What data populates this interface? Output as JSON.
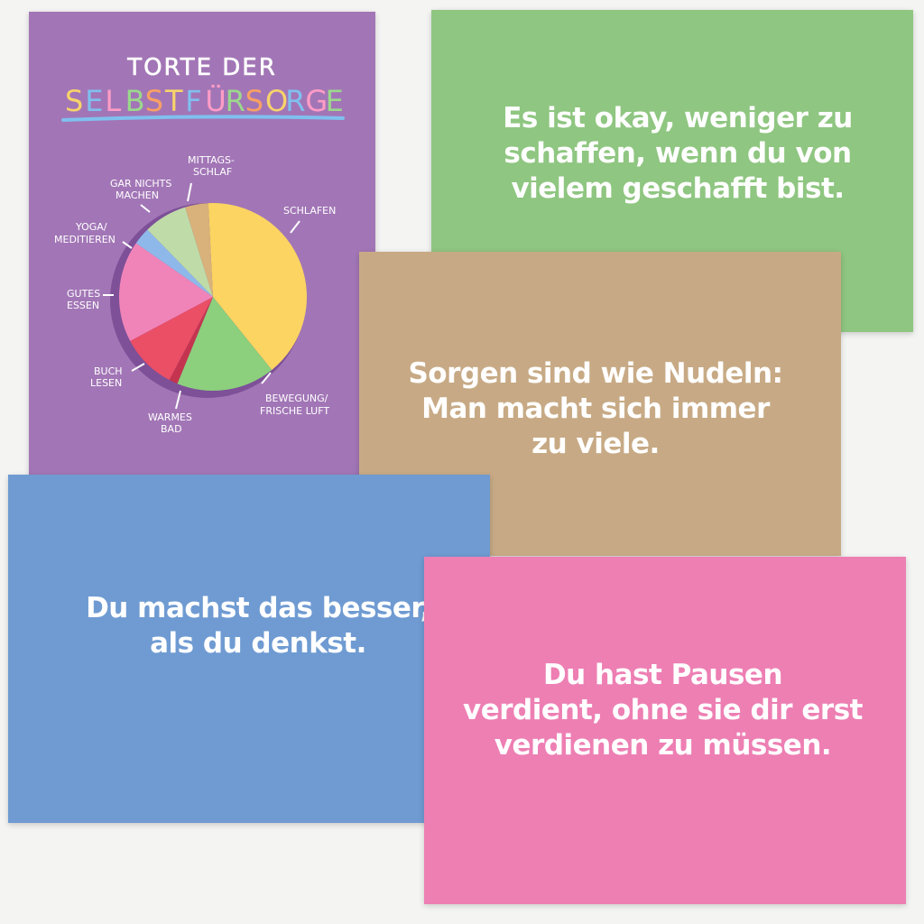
{
  "colors": {
    "background": "#f4f4f3",
    "purple_card": "#a276b6",
    "green_card": "#8fc681",
    "brown_card": "#c7aa85",
    "blue_card": "#6f9bd2",
    "pink_card": "#ed7fb3",
    "quote_text": "#ffffff"
  },
  "poster": {
    "title_line1": "TORTE DER",
    "title_line2_letters": [
      "S",
      "E",
      "L",
      "B",
      "S",
      "T",
      "F",
      "Ü",
      "R",
      "S",
      "O",
      "R",
      "G",
      "E"
    ],
    "title_line2_colors": [
      "#f7d36a",
      "#7fc0ef",
      "#ff9cc6",
      "#9bd88c",
      "#f9a064",
      "#f7d36a",
      "#7fc0ef",
      "#ff9cc6",
      "#9bd88c",
      "#f9a064",
      "#f7d36a",
      "#7fc0ef",
      "#ff9cc6",
      "#9bd88c"
    ],
    "underline_color": "#7fc0ef",
    "pie_labels": {
      "mittagsschlaf_1": "MITTAGS-",
      "mittagsschlaf_2": "SCHLAF",
      "garnichts_1": "GAR NICHTS",
      "garnichts_2": "MACHEN",
      "yoga_1": "YOGA/",
      "yoga_2": "MEDITIEREN",
      "schlafen": "SCHLAFEN",
      "gutes_1": "GUTES",
      "gutes_2": "ESSEN",
      "buch_1": "BUCH",
      "buch_2": "LESEN",
      "warmes_1": "WARMES",
      "warmes_2": "BAD",
      "bewegung_1": "BEWEGUNG/",
      "bewegung_2": "FRISCHE LUFT"
    },
    "pie_slices": [
      {
        "label": "SCHLAFEN",
        "share": 0.4,
        "color": "#fbd462"
      },
      {
        "label": "BEWEGUNG/ FRISCHE LUFT",
        "share": 0.17,
        "color": "#8ccf7d"
      },
      {
        "label": "WARMES BAD",
        "share": 0.015,
        "color": "#c5344f"
      },
      {
        "label": "BUCH LESEN",
        "share": 0.095,
        "color": "#ea4f66"
      },
      {
        "label": "GUTES ESSEN",
        "share": 0.175,
        "color": "#f084b8"
      },
      {
        "label": "YOGA/ MEDITIEREN",
        "share": 0.03,
        "color": "#8fb8ea"
      },
      {
        "label": "GAR NICHTS MACHEN",
        "share": 0.075,
        "color": "#bfdba8"
      },
      {
        "label": "MITTAGSSCHLAF",
        "share": 0.04,
        "color": "#d8b27a"
      }
    ],
    "pie_shadow_color": "#7d5098"
  },
  "cards": {
    "green": "Es ist okay, weniger zu\nschaffen, wenn du von\nvielem geschafft bist.",
    "brown": "Sorgen sind wie Nudeln:\nMan macht sich immer\nzu viele.",
    "blue": "Du machst das besser,\nals du denkst.",
    "pink": "Du hast Pausen\nverdient, ohne sie dir erst\nverdienen zu müssen."
  }
}
